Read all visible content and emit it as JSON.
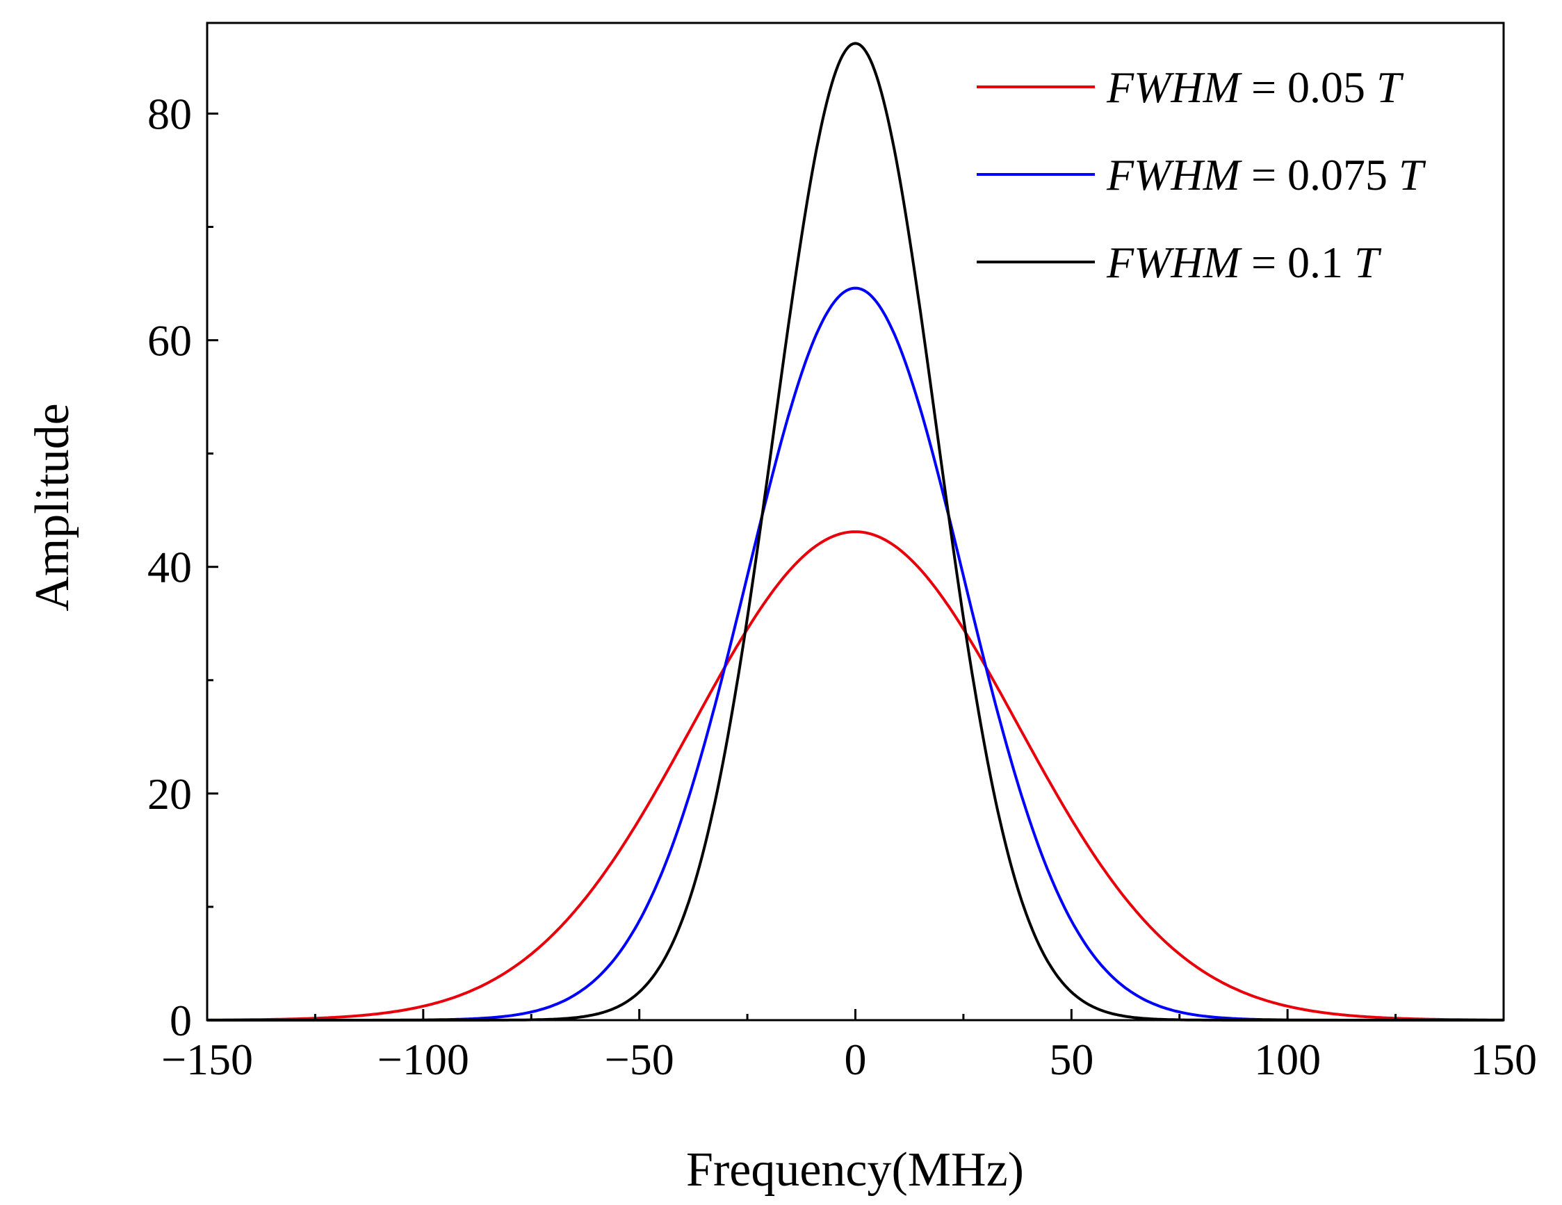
{
  "chart_data": {
    "type": "line",
    "title": "",
    "xlabel": "Frequency(MHz)",
    "ylabel": "Amplitude",
    "xlim": [
      -150,
      150
    ],
    "ylim": [
      0,
      88
    ],
    "x_ticks": [
      -150,
      -100,
      -50,
      0,
      50,
      100,
      150
    ],
    "x_tick_labels": [
      "−150",
      "−100",
      "−50",
      "0",
      "50",
      "100",
      "150"
    ],
    "x_minor_ticks": [
      -125,
      -75,
      -25,
      25,
      75,
      125
    ],
    "y_ticks": [
      0,
      20,
      40,
      60,
      80
    ],
    "y_tick_labels": [
      "0",
      "20",
      "40",
      "60",
      "80"
    ],
    "y_minor_ticks": [
      10,
      30,
      50,
      70
    ],
    "grid": false,
    "legend_position": "top-right",
    "series": [
      {
        "legend_var": "FWHM",
        "legend_eq": " = 0.05 ",
        "legend_unit": "T",
        "color": "#e8000b",
        "peak": 43.1,
        "fwhm_mhz": 88.3,
        "x": [
          -150,
          -140,
          -130,
          -120,
          -110,
          -100,
          -90,
          -80,
          -70,
          -60,
          -50,
          -40,
          -30,
          -20,
          -10,
          0,
          10,
          20,
          30,
          40,
          50,
          60,
          70,
          80,
          90,
          100,
          110,
          120,
          130,
          140,
          150
        ],
        "y": [
          0.0,
          0.05,
          0.15,
          0.38,
          0.87,
          1.25,
          3.6,
          5.9,
          9.2,
          13.5,
          18.6,
          24.2,
          30.0,
          35.5,
          40.7,
          43.1,
          40.7,
          35.5,
          30.0,
          24.2,
          18.6,
          13.5,
          9.2,
          5.9,
          3.6,
          1.25,
          0.87,
          0.38,
          0.15,
          0.05,
          0.0
        ]
      },
      {
        "legend_var": "FWHM",
        "legend_eq": " = 0.075 ",
        "legend_unit": "T",
        "color": "#0000ff",
        "peak": 64.6,
        "fwhm_mhz": 58.9,
        "x": [
          -150,
          -140,
          -130,
          -120,
          -110,
          -100,
          -90,
          -80,
          -70,
          -60,
          -50,
          -40,
          -30,
          -20,
          -10,
          0,
          10,
          20,
          30,
          40,
          50,
          60,
          70,
          80,
          90,
          100,
          110,
          120,
          130,
          140,
          150
        ],
        "y": [
          0.0,
          0.0,
          0.0,
          0.0,
          0.0,
          0.01,
          0.05,
          0.3,
          1.2,
          3.6,
          9.1,
          18.9,
          32.0,
          47.0,
          59.6,
          64.6,
          59.6,
          47.0,
          32.0,
          18.9,
          9.1,
          3.6,
          1.2,
          0.3,
          0.05,
          0.01,
          0.0,
          0.0,
          0.0,
          0.0,
          0.0
        ]
      },
      {
        "legend_var": "FWHM",
        "legend_eq": " = 0.1 ",
        "legend_unit": "T",
        "color": "#000000",
        "peak": 86.2,
        "fwhm_mhz": 44.2,
        "x": [
          -150,
          -140,
          -130,
          -120,
          -110,
          -100,
          -90,
          -80,
          -70,
          -60,
          -50,
          -40,
          -30,
          -20,
          -10,
          0,
          10,
          20,
          30,
          40,
          50,
          60,
          70,
          80,
          90,
          100,
          110,
          120,
          130,
          140,
          150
        ],
        "y": [
          0.0,
          0.0,
          0.0,
          0.0,
          0.0,
          0.0,
          0.0,
          0.0,
          0.03,
          0.4,
          2.6,
          10.7,
          24.5,
          49.2,
          75.3,
          86.2,
          75.3,
          49.2,
          24.5,
          10.7,
          2.6,
          0.4,
          0.03,
          0.0,
          0.0,
          0.0,
          0.0,
          0.0,
          0.0,
          0.0,
          0.0
        ]
      }
    ]
  }
}
